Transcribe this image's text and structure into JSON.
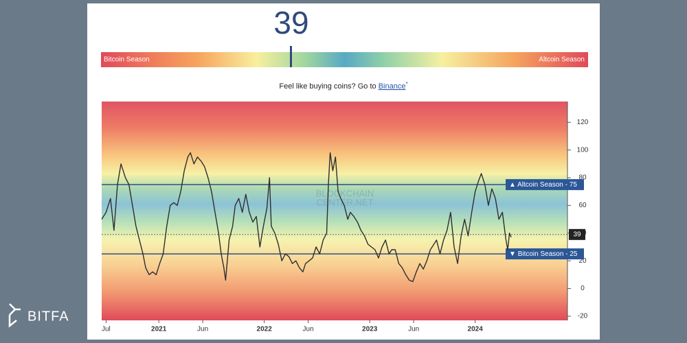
{
  "brand": {
    "name": "BITFA"
  },
  "index": 39,
  "gauge": {
    "range": [
      0,
      100
    ],
    "value": 39,
    "min_label": "Bitcoin Season",
    "max_label": "Altcoin Season"
  },
  "promo": {
    "text": "Feel like buying coins? Go to",
    "link": "Binance",
    "mark": "*"
  },
  "chart_data": {
    "type": "line",
    "color": "#2e2e2e",
    "grid": false,
    "watermark": [
      "BLOCKCHAIN",
      "CENTER.NET"
    ],
    "x": [
      -0.5,
      0,
      0.5,
      0.9,
      1.3,
      1.7,
      2.2,
      2.6,
      3.0,
      3.4,
      3.8,
      4.2,
      4.5,
      4.9,
      5.3,
      5.7,
      6.1,
      6.5,
      6.9,
      7.3,
      7.7,
      8.1,
      8.5,
      8.9,
      9.3,
      9.6,
      10.0,
      10.4,
      10.8,
      11.2,
      11.6,
      12.0,
      12.4,
      12.8,
      13.1,
      13.4,
      13.6,
      14.0,
      14.4,
      14.7,
      15.1,
      15.5,
      15.9,
      16.3,
      16.7,
      17.1,
      17.5,
      17.9,
      18.3,
      18.6,
      18.8,
      19.2,
      19.6,
      20.0,
      20.4,
      20.8,
      21.2,
      21.6,
      22.0,
      22.4,
      22.7,
      23.1,
      23.5,
      23.9,
      24.3,
      24.7,
      25.1,
      25.3,
      25.5,
      25.8,
      26.1,
      26.4,
      26.7,
      27.1,
      27.5,
      27.8,
      28.2,
      28.6,
      29.0,
      29.4,
      29.8,
      30.2,
      30.6,
      31.0,
      31.4,
      31.8,
      32.2,
      32.5,
      32.9,
      33.3,
      33.7,
      34.1,
      34.5,
      34.9,
      35.3,
      35.7,
      36.1,
      36.5,
      36.9,
      37.3,
      37.6,
      38.0,
      38.4,
      38.8,
      39.2,
      39.6,
      40.0,
      40.4,
      40.8,
      41.2,
      41.6,
      42.0,
      42.4,
      42.7,
      43.1,
      43.5,
      43.9,
      44.3,
      44.7,
      45.1,
      45.5,
      45.7,
      45.9,
      46.1
    ],
    "values": [
      50,
      55,
      65,
      42,
      75,
      90,
      80,
      75,
      60,
      45,
      35,
      25,
      15,
      10,
      12,
      10,
      18,
      25,
      45,
      60,
      62,
      60,
      70,
      85,
      95,
      98,
      90,
      95,
      92,
      88,
      80,
      70,
      55,
      40,
      25,
      15,
      6,
      35,
      45,
      60,
      65,
      55,
      68,
      55,
      48,
      52,
      30,
      45,
      58,
      80,
      45,
      40,
      32,
      20,
      25,
      23,
      18,
      20,
      15,
      12,
      18,
      20,
      22,
      30,
      25,
      35,
      40,
      75,
      98,
      85,
      95,
      70,
      65,
      60,
      50,
      55,
      52,
      48,
      42,
      38,
      32,
      30,
      28,
      22,
      30,
      35,
      25,
      28,
      28,
      18,
      15,
      10,
      6,
      5,
      12,
      18,
      14,
      20,
      28,
      32,
      35,
      25,
      35,
      42,
      55,
      30,
      18,
      38,
      50,
      38,
      55,
      70,
      78,
      83,
      75,
      60,
      72,
      65,
      50,
      55,
      35,
      28,
      40,
      37
    ],
    "xlim": [
      -0.5,
      52.5
    ],
    "ylim": [
      -23,
      135
    ],
    "xticks": [
      {
        "value": 0,
        "label": "Jul"
      },
      {
        "value": 6,
        "label": "2021"
      },
      {
        "value": 11,
        "label": "Jun"
      },
      {
        "value": 18,
        "label": "2022"
      },
      {
        "value": 23,
        "label": "Jun"
      },
      {
        "value": 30,
        "label": "2023"
      },
      {
        "value": 35,
        "label": "Jun"
      },
      {
        "value": 42,
        "label": "2024"
      }
    ],
    "yticks": [
      -20,
      0,
      20,
      40,
      60,
      80,
      100,
      120
    ],
    "separator": "-",
    "thresholds": [
      {
        "marker": "▲",
        "label": "Altcoin Season",
        "value": 75
      },
      {
        "marker": "▼",
        "label": "Bitcoin Season",
        "value": 25
      }
    ],
    "current": 39
  }
}
